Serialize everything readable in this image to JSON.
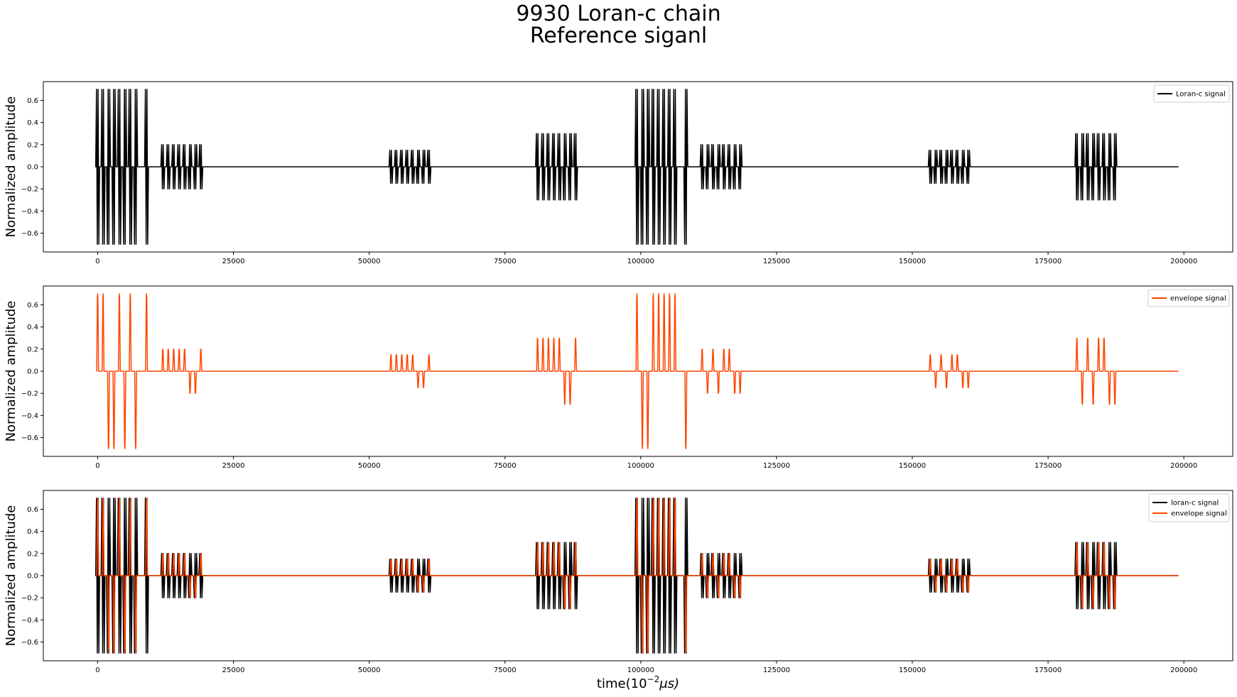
{
  "figure": {
    "title_line1": "9930 Loran-c chain",
    "title_line2": "Reference siganl",
    "shared_ylabel": "Normalized amplitude",
    "xlabel_prefix": "time(10",
    "xlabel_exponent": "−2",
    "xlabel_suffix": "μs)"
  },
  "colors": {
    "loran": "#000000",
    "envelope": "#ff4500",
    "axes": "#000000",
    "background": "#ffffff"
  },
  "chart_data": [
    {
      "type": "line",
      "xlim": [
        -10000,
        209000
      ],
      "ylim": [
        -0.77,
        0.77
      ],
      "xticks": [
        0,
        25000,
        50000,
        75000,
        100000,
        125000,
        150000,
        175000,
        200000
      ],
      "yticks": [
        -0.6,
        -0.4,
        -0.2,
        0.0,
        0.2,
        0.4,
        0.6
      ],
      "ytick_labels": [
        "−0.6",
        "−0.4",
        "−0.2",
        "0.0",
        "0.2",
        "0.4",
        "0.6"
      ],
      "grid": false,
      "legend_position": "top-right",
      "series": [
        {
          "name": "Loran-c signal",
          "color": "#000000",
          "kind": "carrier"
        }
      ]
    },
    {
      "type": "line",
      "xlim": [
        -10000,
        209000
      ],
      "ylim": [
        -0.77,
        0.77
      ],
      "xticks": [
        0,
        25000,
        50000,
        75000,
        100000,
        125000,
        150000,
        175000,
        200000
      ],
      "yticks": [
        -0.6,
        -0.4,
        -0.2,
        0.0,
        0.2,
        0.4,
        0.6
      ],
      "ytick_labels": [
        "−0.6",
        "−0.4",
        "−0.2",
        "0.0",
        "0.2",
        "0.4",
        "0.6"
      ],
      "grid": false,
      "legend_position": "top-right",
      "series": [
        {
          "name": "envelope signal",
          "color": "#ff4500",
          "kind": "envelope"
        }
      ]
    },
    {
      "type": "line",
      "xlim": [
        -10000,
        209000
      ],
      "ylim": [
        -0.77,
        0.77
      ],
      "xticks": [
        0,
        25000,
        50000,
        75000,
        100000,
        125000,
        150000,
        175000,
        200000
      ],
      "yticks": [
        -0.6,
        -0.4,
        -0.2,
        0.0,
        0.2,
        0.4,
        0.6
      ],
      "ytick_labels": [
        "−0.6",
        "−0.4",
        "−0.2",
        "0.0",
        "0.2",
        "0.4",
        "0.6"
      ],
      "grid": false,
      "legend_position": "top-right",
      "series": [
        {
          "name": "loran-c signal",
          "color": "#000000",
          "kind": "carrier"
        },
        {
          "name": "envelope signal",
          "color": "#ff4500",
          "kind": "envelope"
        }
      ]
    }
  ],
  "signal": {
    "x_end": 199000,
    "groups": [
      {
        "pulse_x": [
          0,
          1000,
          2000,
          3000,
          4000,
          5000,
          6000,
          7000,
          9000
        ],
        "amplitude": 0.7,
        "signs": [
          1,
          1,
          -1,
          -1,
          1,
          -1,
          1,
          -1,
          1
        ]
      },
      {
        "pulse_x": [
          12000,
          13000,
          14000,
          15000,
          16000,
          17000,
          18000,
          19000
        ],
        "amplitude": 0.2,
        "signs": [
          1,
          1,
          1,
          1,
          1,
          -1,
          -1,
          1
        ]
      },
      {
        "pulse_x": [
          54000,
          55000,
          56000,
          57000,
          58000,
          59000,
          60000,
          61000
        ],
        "amplitude": 0.15,
        "signs": [
          1,
          1,
          1,
          1,
          1,
          -1,
          -1,
          1
        ]
      },
      {
        "pulse_x": [
          81000,
          82000,
          83000,
          84000,
          85000,
          86000,
          87000,
          88000
        ],
        "amplitude": 0.3,
        "signs": [
          1,
          1,
          1,
          1,
          1,
          -1,
          -1,
          1
        ]
      },
      {
        "pulse_x": [
          99300,
          100300,
          101300,
          102300,
          103300,
          104300,
          105300,
          106300,
          108300
        ],
        "amplitude": 0.7,
        "signs": [
          1,
          -1,
          -1,
          1,
          1,
          1,
          1,
          1,
          -1
        ]
      },
      {
        "pulse_x": [
          111300,
          112300,
          113300,
          114300,
          115300,
          116300,
          117300,
          118300
        ],
        "amplitude": 0.2,
        "signs": [
          1,
          -1,
          1,
          -1,
          1,
          1,
          -1,
          -1
        ]
      },
      {
        "pulse_x": [
          153300,
          154300,
          155300,
          156300,
          157300,
          158300,
          159300,
          160300
        ],
        "amplitude": 0.15,
        "signs": [
          1,
          -1,
          1,
          -1,
          1,
          1,
          -1,
          -1
        ]
      },
      {
        "pulse_x": [
          180300,
          181300,
          182300,
          183300,
          184300,
          185300,
          186300,
          187300
        ],
        "amplitude": 0.3,
        "signs": [
          1,
          -1,
          1,
          -1,
          1,
          1,
          -1,
          -1
        ]
      }
    ]
  }
}
